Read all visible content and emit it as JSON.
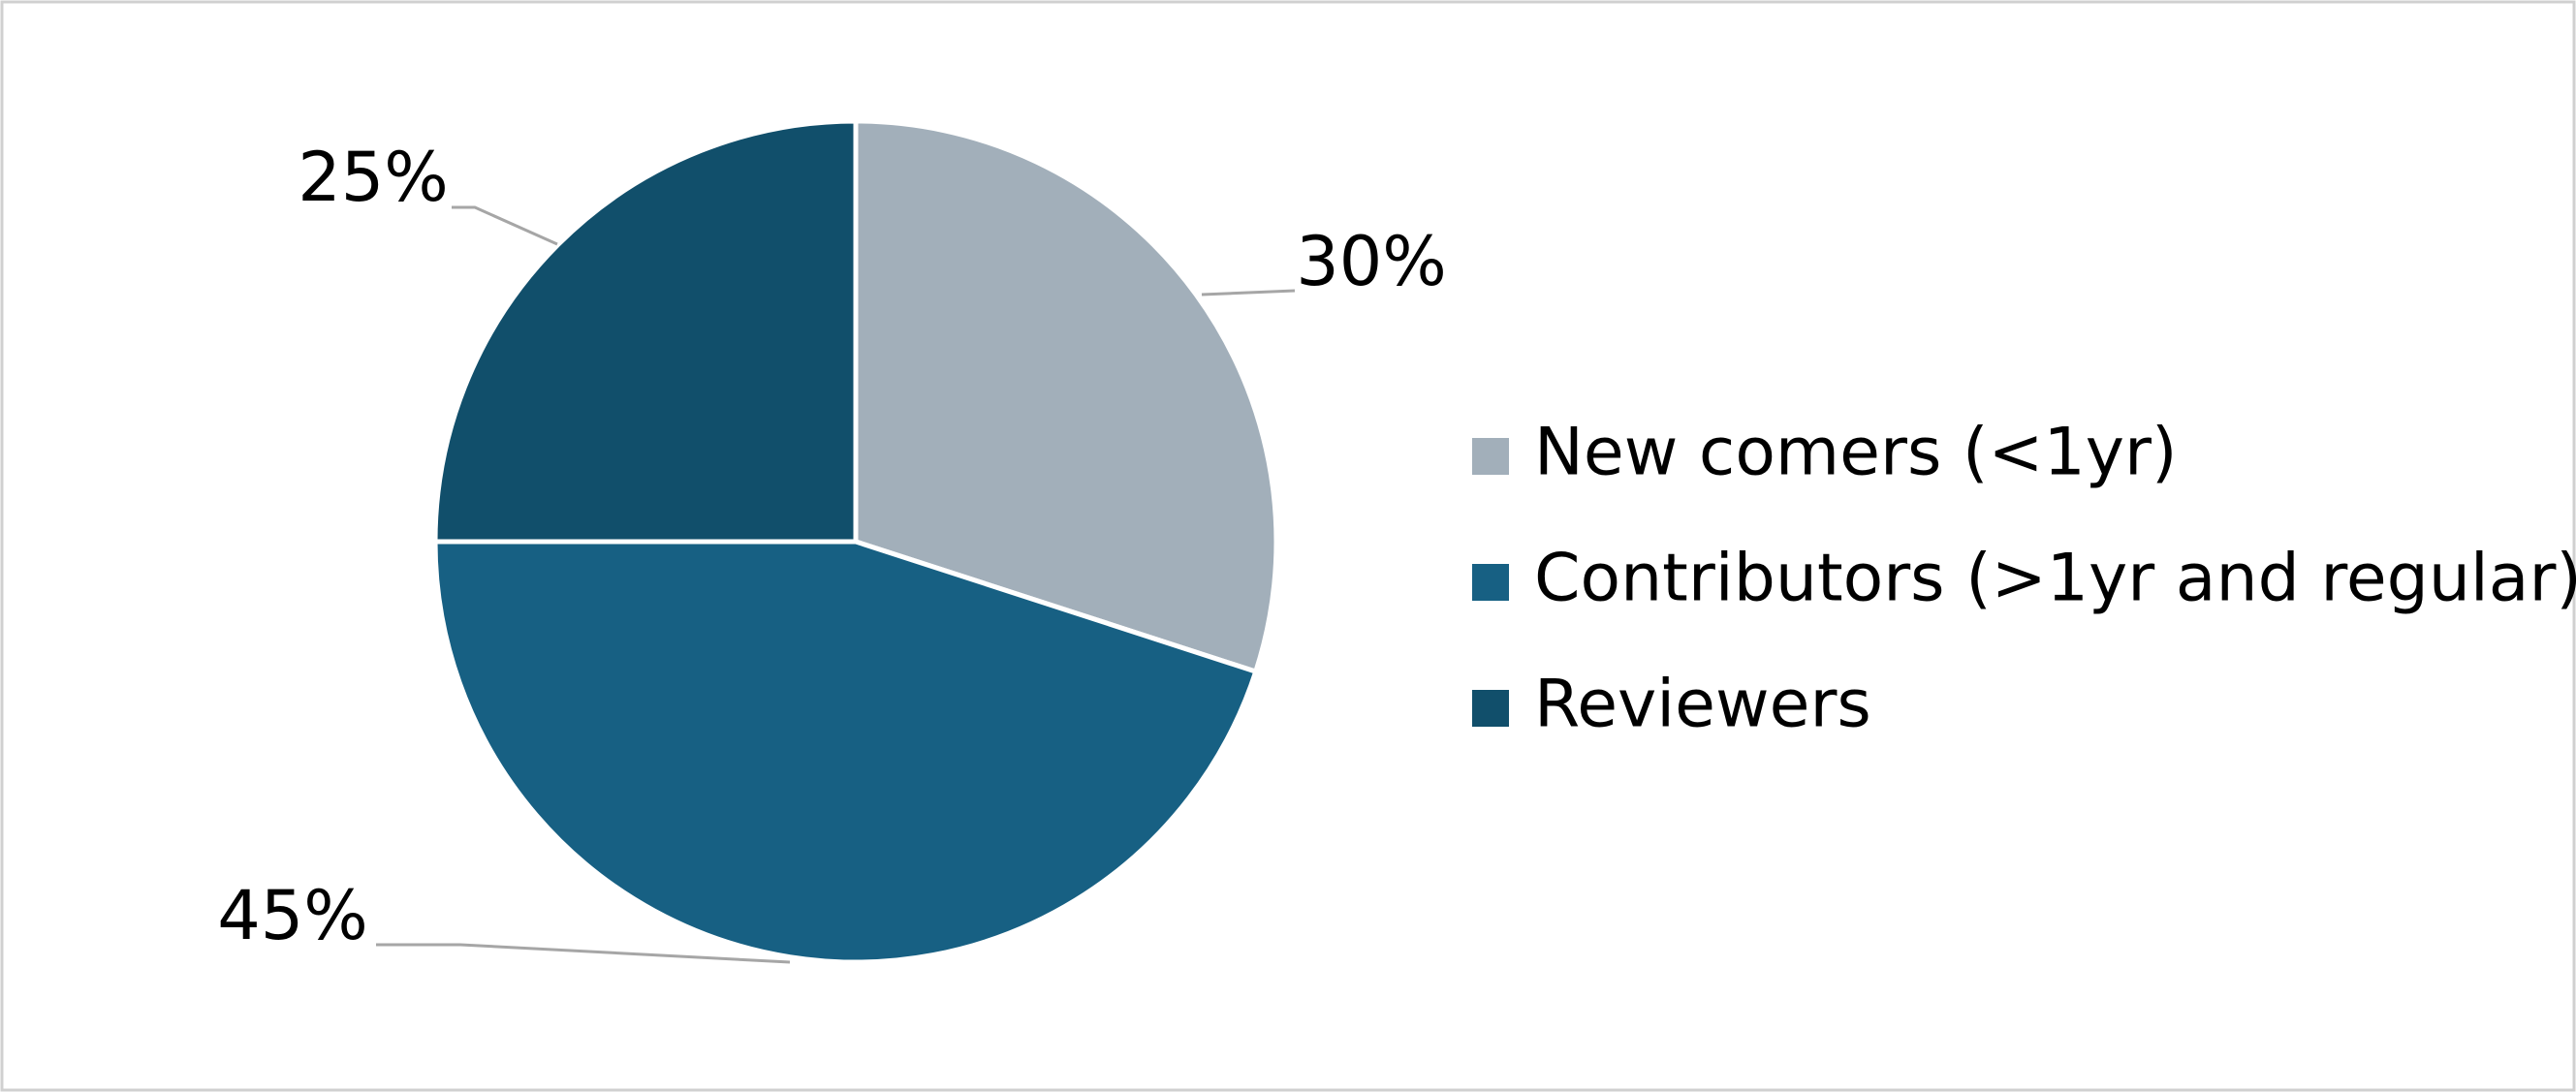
{
  "chart_data": {
    "type": "pie",
    "categories": [
      "New comers (<1yr)",
      "Contributors (>1yr and regular)",
      "Reviewers"
    ],
    "values": [
      30,
      45,
      25
    ],
    "value_labels": [
      "30%",
      "45%",
      "25%"
    ],
    "colors": [
      "#a2afba",
      "#176083",
      "#114f6b"
    ],
    "legend": "right"
  }
}
